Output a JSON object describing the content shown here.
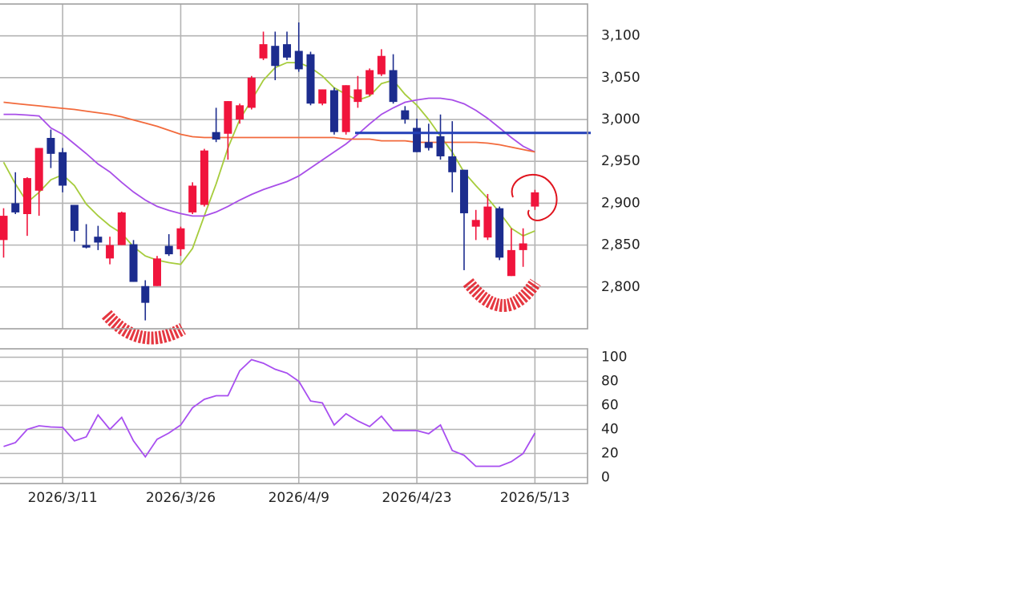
{
  "chart_data": [
    {
      "type": "candlestick",
      "up_color": "#f0143c",
      "down_color": "#1c2c8e",
      "open": [
        2856,
        2900,
        2887,
        2915,
        2978,
        2961,
        2898,
        2850,
        2860,
        2834,
        2850,
        2851,
        2801,
        2801,
        2849,
        2845,
        2889,
        2898,
        2985,
        2983,
        3000,
        3014,
        3073,
        3088,
        3090,
        3082,
        3078,
        3019,
        3035,
        2985,
        3021,
        3030,
        3054,
        3059,
        3011,
        2990,
        2973,
        2980,
        2956,
        2940,
        2872,
        2859,
        2894,
        2813,
        2844,
        2896
      ],
      "high": [
        2894,
        2937,
        2931,
        2966,
        2988,
        2966,
        2898,
        2875,
        2873,
        2860,
        2890,
        2856,
        2808,
        2837,
        2863,
        2872,
        2925,
        2965,
        3014,
        3022,
        3019,
        3052,
        3105,
        3105,
        3105,
        3116,
        3081,
        3036,
        3038,
        3041,
        3052,
        3061,
        3084,
        3078,
        3016,
        3001,
        2995,
        3006,
        2998,
        2940,
        2892,
        2911,
        2896,
        2870,
        2870,
        2916
      ],
      "low": [
        2835,
        2887,
        2861,
        2885,
        2942,
        2913,
        2854,
        2846,
        2844,
        2827,
        2850,
        2806,
        2760,
        2801,
        2837,
        2837,
        2887,
        2896,
        2973,
        2952,
        2995,
        3012,
        3071,
        3047,
        3071,
        3057,
        3017,
        3017,
        2982,
        2982,
        3014,
        3028,
        3052,
        3019,
        2995,
        2961,
        2963,
        2952,
        2913,
        2820,
        2856,
        2856,
        2832,
        2813,
        2824,
        2892
      ],
      "close": [
        2885,
        2889,
        2930,
        2966,
        2959,
        2921,
        2867,
        2847,
        2853,
        2850,
        2889,
        2806,
        2781,
        2834,
        2839,
        2870,
        2921,
        2963,
        2976,
        3022,
        3017,
        3050,
        3090,
        3064,
        3074,
        3060,
        3019,
        3036,
        2985,
        3041,
        3036,
        3059,
        3076,
        3021,
        3000,
        2961,
        2966,
        2956,
        2937,
        2888,
        2880,
        2896,
        2835,
        2844,
        2852,
        2913
      ],
      "lines": [
        {
          "color": "#a6cc3c",
          "values": [
            2949,
            2923,
            2901,
            2913,
            2928,
            2934,
            2921,
            2899,
            2885,
            2873,
            2864,
            2848,
            2837,
            2832,
            2829,
            2827,
            2846,
            2885,
            2923,
            2966,
            3000,
            3023,
            3047,
            3062,
            3068,
            3068,
            3062,
            3052,
            3038,
            3030,
            3023,
            3028,
            3043,
            3047,
            3030,
            3017,
            3000,
            2980,
            2961,
            2937,
            2921,
            2906,
            2889,
            2870,
            2861,
            2867
          ]
        },
        {
          "color": "#a84ee8",
          "values": [
            3006.2,
            3006.2,
            3005.3,
            3004.3,
            2990,
            2982.3,
            2970.8,
            2959.3,
            2946.9,
            2937.3,
            2924.9,
            2913.4,
            2903.8,
            2896.2,
            2891.4,
            2887.6,
            2884.7,
            2884.7,
            2889.5,
            2896.2,
            2903.8,
            2910.5,
            2916.3,
            2921.1,
            2925.8,
            2932.5,
            2942.1,
            2951.7,
            2961.2,
            2970.8,
            2982.3,
            2994.7,
            3006.2,
            3013.9,
            3020.6,
            3023.4,
            3025.4,
            3025.4,
            3023.4,
            3018.7,
            3011,
            3001.4,
            2990,
            2978.5,
            2968,
            2961.2
          ]
        },
        {
          "color": "#f26a3c",
          "values": [
            3020.6,
            3019.1,
            3017.7,
            3016.3,
            3014.8,
            3013.4,
            3012,
            3010,
            3008.1,
            3006.2,
            3003.3,
            2999.5,
            2995.7,
            2991.9,
            2987.1,
            2982.3,
            2979.4,
            2978.5,
            2978.5,
            2978.5,
            2978.5,
            2978.5,
            2978.5,
            2978.5,
            2978.5,
            2978.5,
            2978.5,
            2978.5,
            2978.5,
            2976.6,
            2976.6,
            2976.6,
            2974.6,
            2974.6,
            2974.6,
            2972.7,
            2972.7,
            2972.7,
            2972.7,
            2972.7,
            2972.7,
            2971.8,
            2969.9,
            2967,
            2964.1,
            2961.2
          ]
        }
      ],
      "hline": {
        "value": 2984,
        "color": "#2440b8"
      },
      "ylim": [
        2750,
        3138
      ],
      "yticks": [
        {
          "value": 2800,
          "label": "2,800"
        },
        {
          "value": 2850,
          "label": "2,850"
        },
        {
          "value": 2900,
          "label": "2,900"
        },
        {
          "value": 2950,
          "label": "2,950"
        },
        {
          "value": 3000,
          "label": "3,000"
        },
        {
          "value": 3050,
          "label": "3,050"
        },
        {
          "value": 3100,
          "label": "3,100"
        }
      ],
      "grid": true
    },
    {
      "type": "line",
      "categories": [
        null,
        null,
        null,
        null,
        null,
        "2026/3/11",
        null,
        null,
        null,
        null,
        null,
        null,
        null,
        null,
        null,
        "2026/3/26",
        null,
        null,
        null,
        null,
        null,
        null,
        null,
        null,
        null,
        "2026/4/9",
        null,
        null,
        null,
        null,
        null,
        null,
        null,
        null,
        null,
        "2026/4/23",
        null,
        null,
        null,
        null,
        null,
        null,
        null,
        null,
        null,
        "2026/5/13"
      ],
      "values": [
        25.8,
        29,
        40,
        43,
        42,
        41.7,
        30.5,
        33.8,
        52,
        40,
        50,
        30.5,
        17.2,
        31.8,
        37,
        43.7,
        58,
        65,
        68,
        68,
        88.7,
        98,
        95,
        90,
        86.8,
        80,
        63.6,
        62,
        43.7,
        53,
        47,
        42.4,
        51,
        39,
        39,
        39,
        36.4,
        43.7,
        22.5,
        18.5,
        9.3,
        9.3,
        9.3,
        13.2,
        19.9,
        37
      ],
      "color": "#a84ef0",
      "ylim": [
        -5,
        107
      ],
      "yticks": [
        0,
        20,
        40,
        60,
        80,
        100
      ],
      "grid": true
    }
  ]
}
